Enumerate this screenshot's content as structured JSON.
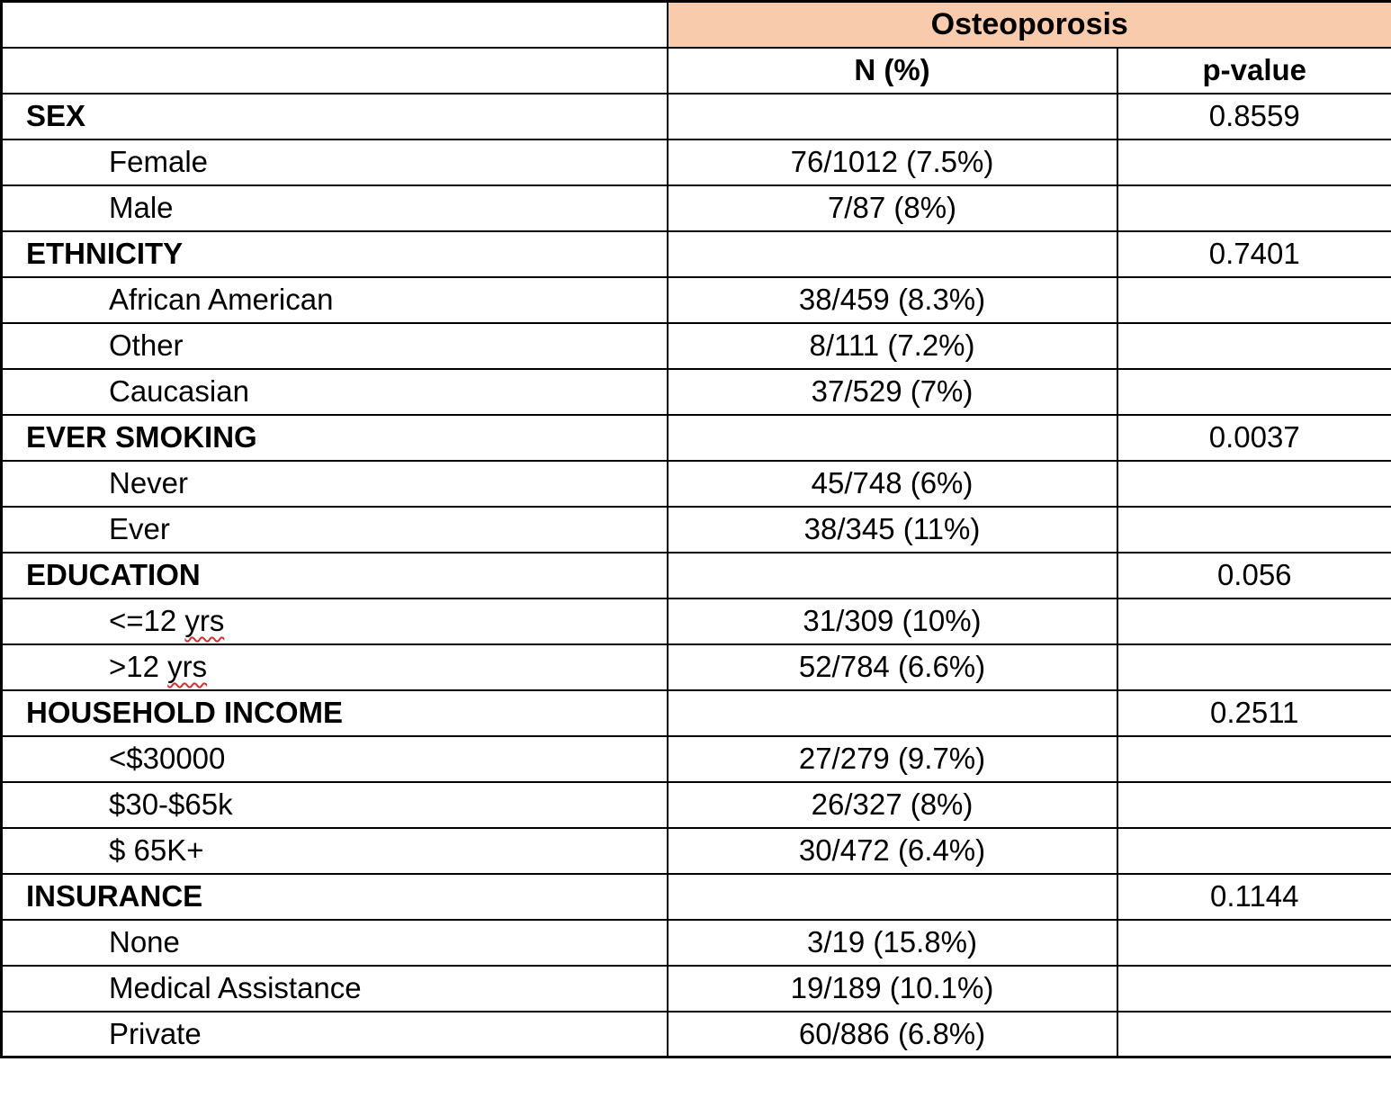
{
  "table": {
    "title": "Osteoporosis",
    "col_n_header": "N (%)",
    "col_p_header": "p-value",
    "header_bg": "#F8CBAD",
    "border_color": "#000000",
    "rows": [
      {
        "type": "category",
        "label": "SEX",
        "n": "",
        "p": "0.8559"
      },
      {
        "type": "sub",
        "label": "Female",
        "n": "76/1012 (7.5%)",
        "p": ""
      },
      {
        "type": "sub",
        "label": "Male",
        "n": "7/87 (8%)",
        "p": ""
      },
      {
        "type": "category",
        "label": "ETHNICITY",
        "n": "",
        "p": "0.7401"
      },
      {
        "type": "sub",
        "label": "African American",
        "n": "38/459 (8.3%)",
        "p": ""
      },
      {
        "type": "sub",
        "label": "Other",
        "n": "8/111 (7.2%)",
        "p": ""
      },
      {
        "type": "sub",
        "label": "Caucasian",
        "n": "37/529 (7%)",
        "p": ""
      },
      {
        "type": "category",
        "label": "EVER SMOKING",
        "n": "",
        "p": "0.0037"
      },
      {
        "type": "sub",
        "label": "Never",
        "n": "45/748 (6%)",
        "p": ""
      },
      {
        "type": "sub",
        "label": "Ever",
        "n": "38/345 (11%)",
        "p": ""
      },
      {
        "type": "category",
        "label": "EDUCATION",
        "n": "",
        "p": "0.056"
      },
      {
        "type": "sub",
        "label": "<=12 yrs",
        "squiggle": "yrs",
        "n": "31/309 (10%)",
        "p": ""
      },
      {
        "type": "sub",
        "label": ">12 yrs",
        "squiggle": "yrs",
        "n": "52/784 (6.6%)",
        "p": ""
      },
      {
        "type": "category",
        "label": "HOUSEHOLD INCOME",
        "n": "",
        "p": "0.2511"
      },
      {
        "type": "sub",
        "label": "<$30000",
        "n": "27/279 (9.7%)",
        "p": ""
      },
      {
        "type": "sub",
        "label": "$30-$65k",
        "n": "26/327 (8%)",
        "p": ""
      },
      {
        "type": "sub",
        "label": "$ 65K+",
        "n": "30/472 (6.4%)",
        "p": ""
      },
      {
        "type": "category",
        "label": "INSURANCE",
        "n": "",
        "p": "0.1144"
      },
      {
        "type": "sub",
        "label": "None",
        "n": "3/19 (15.8%)",
        "p": ""
      },
      {
        "type": "sub",
        "label": "Medical Assistance",
        "n": "19/189 (10.1%)",
        "p": ""
      },
      {
        "type": "sub",
        "label": "Private",
        "n": "60/886 (6.8%)",
        "p": ""
      }
    ]
  }
}
